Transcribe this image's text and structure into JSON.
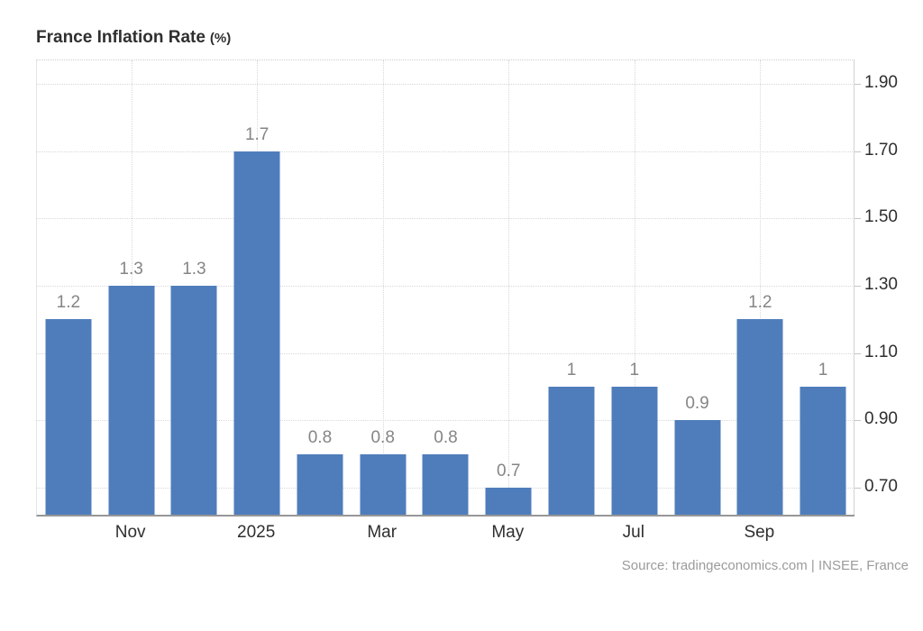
{
  "header": {
    "title": "France Inflation Rate",
    "unit": "(%)"
  },
  "footer": {
    "source": "Source: tradingeconomics.com | INSEE, France"
  },
  "chart_data": {
    "type": "bar",
    "title": "France Inflation Rate (%)",
    "xlabel": "",
    "ylabel": "",
    "categories": [
      "",
      "Nov",
      "",
      "2025",
      "",
      "Mar",
      "",
      "May",
      "",
      "Jul",
      "",
      "Sep",
      ""
    ],
    "values": [
      1.2,
      1.3,
      1.3,
      1.7,
      0.8,
      0.8,
      0.8,
      0.7,
      1,
      1,
      0.9,
      1.2,
      1
    ],
    "bar_labels": [
      "1.2",
      "1.3",
      "1.3",
      "1.7",
      "0.8",
      "0.8",
      "0.8",
      "0.7",
      "1",
      "1",
      "0.9",
      "1.2",
      "1"
    ],
    "ylim": [
      0.62,
      1.97
    ],
    "yticks": [
      1.9,
      1.7,
      1.5,
      1.3,
      1.1,
      0.9,
      0.7
    ],
    "ytick_labels": [
      "1.90",
      "1.70",
      "1.50",
      "1.30",
      "1.10",
      "0.90",
      "0.70"
    ],
    "grid": true,
    "legend": false,
    "yaxis_position": "right",
    "bar_color": "#4f7dbb"
  }
}
